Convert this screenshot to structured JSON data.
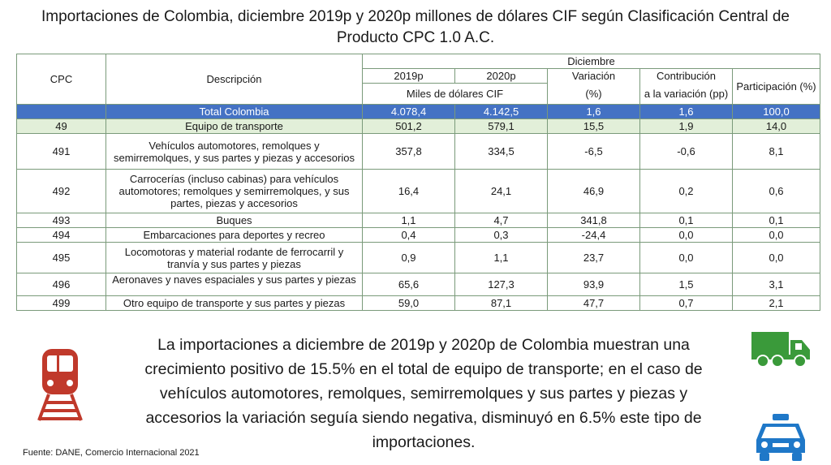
{
  "title": {
    "line1": "Importaciones de Colombia, diciembre 2019p y 2020p millones de dólares CIF según Clasificación Central de",
    "line2": "Producto CPC 1.0 A.C."
  },
  "table": {
    "headers": {
      "cpc": "CPC",
      "descripcion": "Descripción",
      "diciembre": "Diciembre",
      "y2019": "2019p",
      "y2020": "2020p",
      "variacion": "Variación",
      "contribucion": "Contribución",
      "participacion": "Participación (%)",
      "miles": "Miles de dólares CIF",
      "pct": "(%)",
      "contrib_unit": "a la variación (pp)"
    },
    "total": {
      "cpc": "",
      "desc": "Total Colombia",
      "v2019": "4.078,4",
      "v2020": "4.142,5",
      "var": "1,6",
      "contrib": "1,6",
      "part": "100,0"
    },
    "sub": {
      "cpc": "49",
      "desc": "Equipo de transporte",
      "v2019": "501,2",
      "v2020": "579,1",
      "var": "15,5",
      "contrib": "1,9",
      "part": "14,0"
    },
    "rows": [
      {
        "cpc": "491",
        "desc": "Vehículos automotores, remolques y semirremolques, y sus partes y piezas y accesorios",
        "v2019": "357,8",
        "v2020": "334,5",
        "var": "-6,5",
        "contrib": "-0,6",
        "part": "8,1"
      },
      {
        "cpc": "492",
        "desc": "Carrocerías (incluso cabinas) para vehículos automotores; remolques y semirremolques, y sus partes, piezas y accesorios",
        "v2019": "16,4",
        "v2020": "24,1",
        "var": "46,9",
        "contrib": "0,2",
        "part": "0,6"
      },
      {
        "cpc": "493",
        "desc": "Buques",
        "v2019": "1,1",
        "v2020": "4,7",
        "var": "341,8",
        "contrib": "0,1",
        "part": "0,1"
      },
      {
        "cpc": "494",
        "desc": "Embarcaciones para deportes y recreo",
        "v2019": "0,4",
        "v2020": "0,3",
        "var": "-24,4",
        "contrib": "0,0",
        "part": "0,0"
      },
      {
        "cpc": "495",
        "desc": "Locomotoras y material rodante de ferrocarril y tranvía y sus partes y piezas",
        "v2019": "0,9",
        "v2020": "1,1",
        "var": "23,7",
        "contrib": "0,0",
        "part": "0,0"
      },
      {
        "cpc": "496",
        "desc": "Aeronaves y naves espaciales y sus partes y piezas",
        "v2019": "65,6",
        "v2020": "127,3",
        "var": "93,9",
        "contrib": "1,5",
        "part": "3,1"
      },
      {
        "cpc": "499",
        "desc": "Otro equipo de transporte y sus partes y piezas",
        "v2019": "59,0",
        "v2020": "87,1",
        "var": "47,7",
        "contrib": "0,7",
        "part": "2,1"
      }
    ]
  },
  "summary": "La importaciones a diciembre de 2019p y 2020p de Colombia muestran una crecimiento positivo de 15.5% en el total de equipo de transporte; en el caso de vehículos automotores, remolques, semirremolques y sus partes y piezas y accesorios la variación seguía siendo negativa, disminuyó en 6.5% este tipo de importaciones.",
  "source": "Fuente: DANE, Comercio Internacional 2021",
  "icons": {
    "train": "train-icon",
    "truck": "truck-icon",
    "taxi": "taxi-icon"
  },
  "colors": {
    "total_row": "#4472c4",
    "sub_row": "#e2efd9",
    "train": "#c0392b",
    "truck": "#3a9a3a",
    "taxi": "#1f78c8"
  }
}
